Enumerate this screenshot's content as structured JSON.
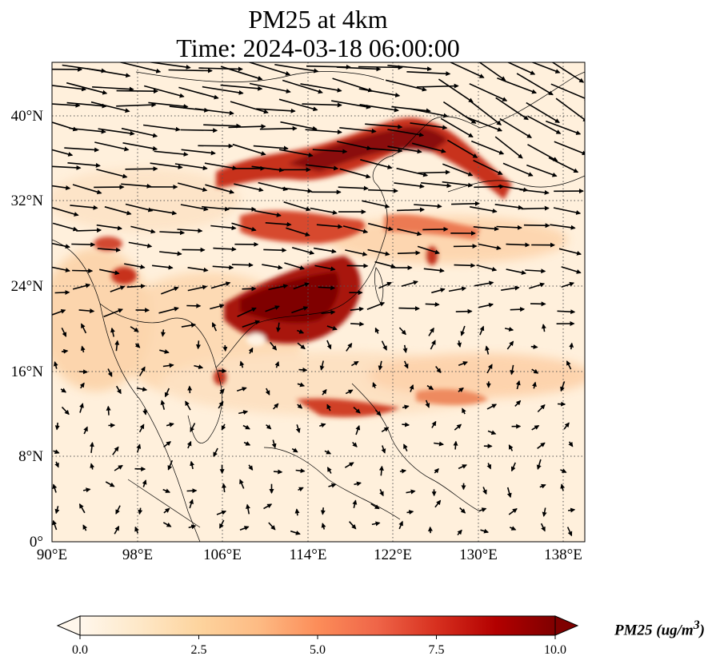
{
  "title": {
    "line1": "PM25 at 4km",
    "line2": "Time: 2024-03-18 06:00:00"
  },
  "map": {
    "lon_range": [
      90,
      140
    ],
    "lat_range": [
      0,
      45
    ],
    "x_ticks": [
      "90°E",
      "98°E",
      "106°E",
      "114°E",
      "122°E",
      "130°E",
      "138°E"
    ],
    "y_ticks": [
      "0°",
      "8°N",
      "16°N",
      "24°N",
      "32°N",
      "40°N"
    ],
    "gridlines": "dotted",
    "colormap": [
      "#fff7ec",
      "#fee8c8",
      "#fdd49e",
      "#fdbb84",
      "#fc8d59",
      "#ef6548",
      "#d7301f",
      "#b30000",
      "#7f0000"
    ]
  },
  "colorbar": {
    "ticks": [
      "0.0",
      "2.5",
      "5.0",
      "7.5",
      "10.0"
    ],
    "range": [
      0,
      10
    ],
    "extend": "both"
  },
  "colorbar_unit": {
    "variable": "PM25",
    "unit_prefix": "ug/m",
    "unit_exp": "3"
  }
}
